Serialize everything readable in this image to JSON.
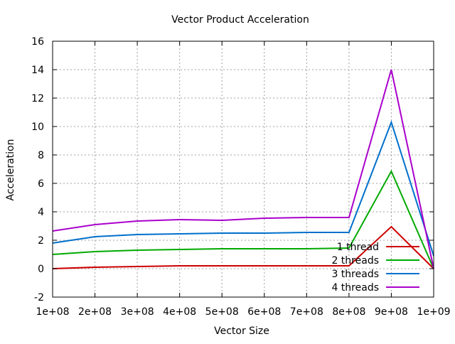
{
  "chart_data": {
    "type": "line",
    "title": "Vector Product Acceleration",
    "xlabel": "Vector Size",
    "ylabel": "Acceleration",
    "xlim": [
      100000000,
      1000000000
    ],
    "ylim": [
      -2,
      16
    ],
    "xticks": [
      100000000,
      200000000,
      300000000,
      400000000,
      500000000,
      600000000,
      700000000,
      800000000,
      900000000,
      1000000000
    ],
    "xtick_labels": [
      "1e+08",
      "2e+08",
      "3e+08",
      "4e+08",
      "5e+08",
      "6e+08",
      "7e+08",
      "8e+08",
      "9e+08",
      "1e+09"
    ],
    "yticks": [
      -2,
      0,
      2,
      4,
      6,
      8,
      10,
      12,
      14,
      16
    ],
    "ytick_labels": [
      "-2",
      "0",
      "2",
      "4",
      "6",
      "8",
      "10",
      "12",
      "14",
      "16"
    ],
    "grid": true,
    "legend_position": "bottom-right",
    "x": [
      100000000,
      200000000,
      300000000,
      400000000,
      500000000,
      600000000,
      700000000,
      800000000,
      900000000,
      1000000000
    ],
    "series": [
      {
        "name": "1 thread",
        "color": "#cc0000",
        "values": [
          0.0,
          0.1,
          0.15,
          0.2,
          0.2,
          0.2,
          0.2,
          0.2,
          2.95,
          0.0
        ]
      },
      {
        "name": "2 threads",
        "color": "#00aa00",
        "values": [
          1.0,
          1.2,
          1.3,
          1.35,
          1.4,
          1.4,
          1.4,
          1.45,
          6.85,
          0.0
        ]
      },
      {
        "name": "3 threads",
        "color": "#0070cc",
        "values": [
          1.8,
          2.25,
          2.4,
          2.45,
          2.5,
          2.5,
          2.55,
          2.55,
          10.3,
          0.9
        ]
      },
      {
        "name": "4 threads",
        "color": "#aa00cc",
        "values": [
          2.65,
          3.1,
          3.35,
          3.45,
          3.4,
          3.55,
          3.6,
          3.6,
          14.0,
          0.0
        ]
      }
    ]
  }
}
